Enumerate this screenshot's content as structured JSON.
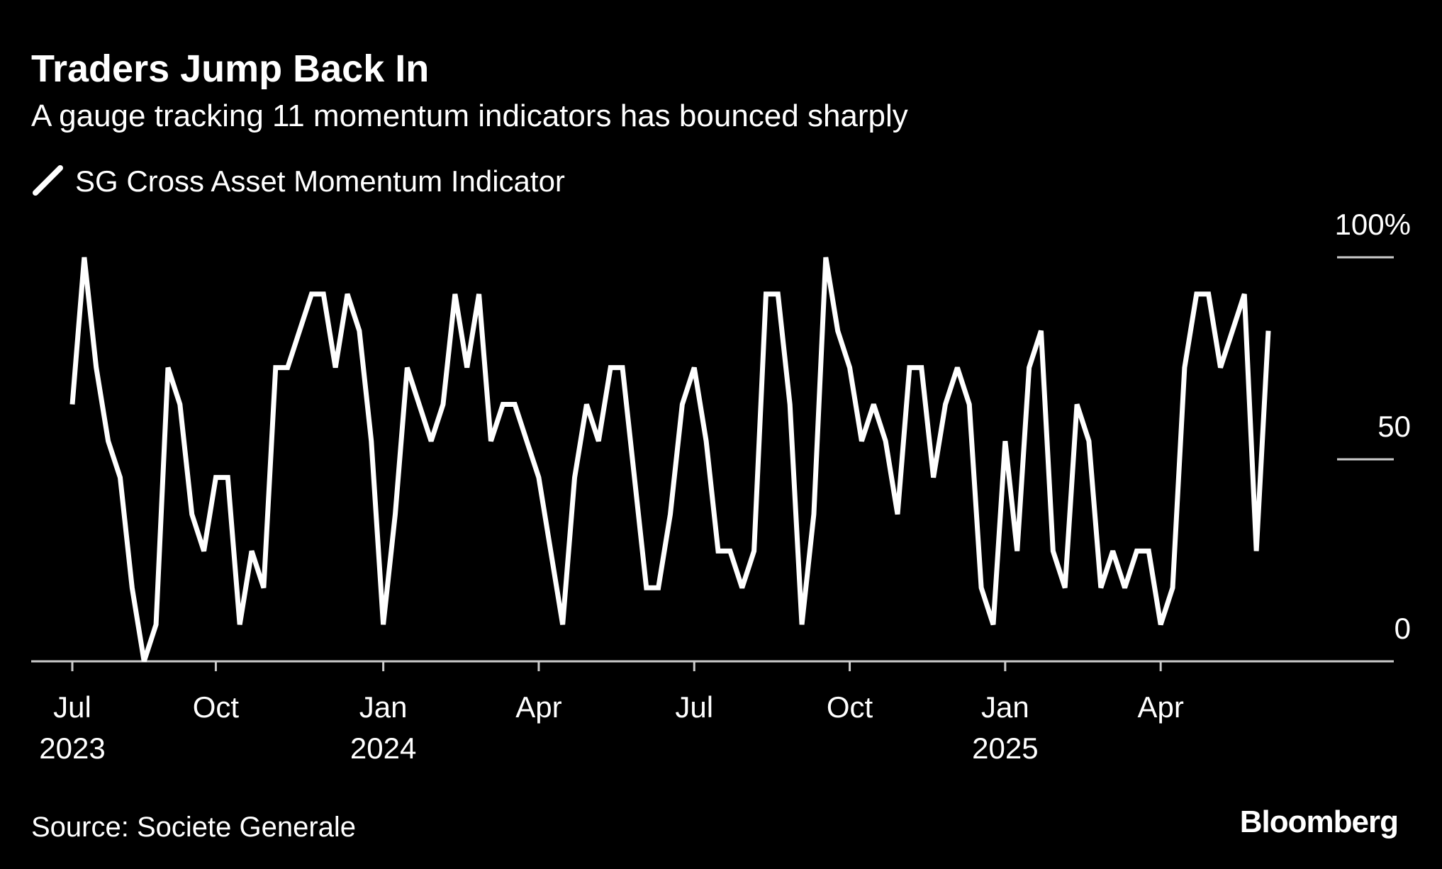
{
  "chart_data": {
    "type": "line",
    "title": "Traders Jump Back In",
    "subtitle": "A gauge tracking 11 momentum indicators has bounced sharply",
    "source": "Source: Societe Generale",
    "brand": "Bloomberg",
    "categories": [
      "Jul 2023",
      null,
      null,
      null,
      null,
      null,
      null,
      null,
      null,
      null,
      null,
      null,
      "Oct",
      null,
      null,
      null,
      null,
      null,
      null,
      null,
      null,
      null,
      null,
      null,
      null,
      null,
      "Jan 2024",
      null,
      null,
      null,
      null,
      null,
      null,
      null,
      null,
      null,
      null,
      null,
      null,
      "Apr",
      null,
      null,
      null,
      null,
      null,
      null,
      null,
      null,
      null,
      null,
      null,
      null,
      "Jul",
      null,
      null,
      null,
      null,
      null,
      null,
      null,
      null,
      null,
      null,
      null,
      null,
      "Oct",
      null,
      null,
      null,
      null,
      null,
      null,
      null,
      null,
      null,
      null,
      null,
      null,
      "Jan 2025",
      null,
      null,
      null,
      null,
      null,
      null,
      null,
      null,
      null,
      null,
      null,
      null,
      "Apr",
      null,
      null,
      null,
      null,
      null,
      null,
      null,
      null,
      null
    ],
    "series": [
      {
        "name": "SG Cross Asset Momentum Indicator",
        "color": "#ffffff",
        "values": [
          63.6,
          100,
          72.7,
          54.5,
          45.5,
          18.2,
          0,
          9.1,
          72.7,
          63.6,
          36.4,
          27.3,
          45.5,
          45.5,
          9.1,
          27.3,
          18.2,
          72.7,
          72.7,
          81.8,
          90.9,
          90.9,
          72.7,
          90.9,
          81.8,
          54.5,
          9.1,
          36.4,
          72.7,
          63.6,
          54.5,
          63.6,
          90.9,
          72.7,
          90.9,
          54.5,
          63.6,
          63.6,
          54.5,
          45.5,
          27.3,
          9.1,
          45.5,
          63.6,
          54.5,
          72.7,
          72.7,
          45.5,
          18.2,
          18.2,
          36.4,
          63.6,
          72.7,
          54.5,
          27.3,
          27.3,
          18.2,
          27.3,
          90.9,
          90.9,
          63.6,
          9.1,
          36.4,
          100,
          81.8,
          72.7,
          54.5,
          63.6,
          54.5,
          36.4,
          72.7,
          72.7,
          45.5,
          63.6,
          72.7,
          63.6,
          18.2,
          9.1,
          54.5,
          27.3,
          72.7,
          81.8,
          27.3,
          18.2,
          63.6,
          54.5,
          18.2,
          27.3,
          18.2,
          27.3,
          27.3,
          9.1,
          18.2,
          72.7,
          90.9,
          90.9,
          72.7,
          81.8,
          90.9,
          27.3,
          81.8
        ]
      }
    ],
    "ylim": [
      0,
      100
    ],
    "yticks": [
      0,
      50,
      {
        "value": 100,
        "label": "100%"
      }
    ]
  }
}
